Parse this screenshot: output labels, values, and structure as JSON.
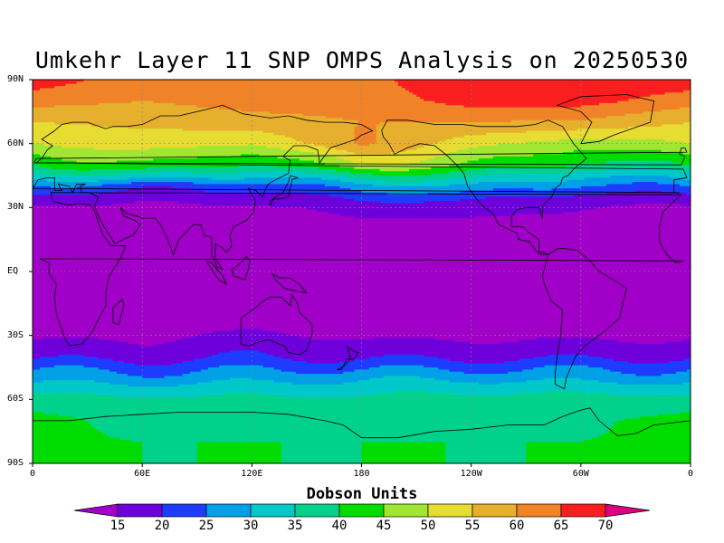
{
  "title": "Umkehr Layer 11 SNP OMPS Analysis on 20250530",
  "colorbar": {
    "title": "Dobson Units",
    "tick_labels": [
      "15",
      "20",
      "25",
      "30",
      "35",
      "40",
      "45",
      "50",
      "55",
      "60",
      "65",
      "70"
    ],
    "colors": [
      "#a000c8",
      "#6e00dc",
      "#1e3cff",
      "#00a0e6",
      "#00c8c8",
      "#00d28c",
      "#00dc00",
      "#a0e632",
      "#e6dc32",
      "#e6af2d",
      "#f08228",
      "#fa1e1e",
      "#dc0080"
    ]
  },
  "axes": {
    "lat_labels": [
      "90N",
      "60N",
      "30N",
      "EQ",
      "30S",
      "60S",
      "90S"
    ],
    "lon_labels": [
      "0",
      "60E",
      "120E",
      "180",
      "120W",
      "60W",
      "0"
    ]
  },
  "chart_data": {
    "type": "heatmap",
    "title": "Umkehr Layer 11 SNP OMPS Analysis on 20250530",
    "units": "Dobson Units",
    "levels": [
      15,
      20,
      25,
      30,
      35,
      40,
      45,
      50,
      55,
      60,
      65,
      70
    ],
    "lon_range": [
      0,
      360
    ],
    "lat_range": [
      -90,
      90
    ],
    "lon_sample": [
      0,
      30,
      60,
      90,
      120,
      150,
      180,
      210,
      240,
      270,
      300,
      330,
      360
    ],
    "zonal_profiles": {
      "lat": [
        90,
        80,
        70,
        60,
        50,
        45,
        40,
        35,
        30,
        20,
        0,
        -20,
        -30,
        -40,
        -45,
        -50,
        -55,
        -60,
        -70,
        -80,
        -90
      ],
      "by_lon": {
        "0": [
          68,
          62,
          55,
          50,
          40,
          33,
          25,
          18,
          14,
          12,
          12,
          12,
          14,
          19,
          24,
          28,
          33,
          37,
          42,
          41,
          41
        ],
        "60": [
          62,
          60,
          56,
          53,
          45,
          35,
          22,
          17,
          14,
          12,
          12,
          12,
          14,
          18,
          23,
          27,
          32,
          36,
          38,
          40,
          40
        ],
        "120": [
          63,
          62,
          58,
          50,
          38,
          30,
          22,
          17,
          14,
          12,
          12,
          12,
          16,
          20,
          24,
          28,
          33,
          36,
          38,
          40,
          40
        ],
        "180": [
          63,
          62,
          60,
          61,
          50,
          38,
          28,
          22,
          17,
          13,
          12,
          12,
          14,
          19,
          24,
          29,
          33,
          36,
          38,
          40,
          40
        ],
        "240": [
          70,
          67,
          60,
          52,
          45,
          38,
          30,
          22,
          17,
          13,
          12,
          12,
          14,
          19,
          24,
          29,
          34,
          37,
          39,
          40,
          40
        ],
        "300": [
          70,
          67,
          59,
          47,
          38,
          30,
          24,
          18,
          15,
          13,
          12,
          12,
          14,
          19,
          24,
          28,
          33,
          37,
          39,
          40,
          40
        ],
        "360": [
          68,
          62,
          55,
          50,
          40,
          33,
          25,
          18,
          14,
          12,
          12,
          12,
          14,
          19,
          24,
          28,
          33,
          37,
          42,
          41,
          41
        ]
      }
    }
  }
}
